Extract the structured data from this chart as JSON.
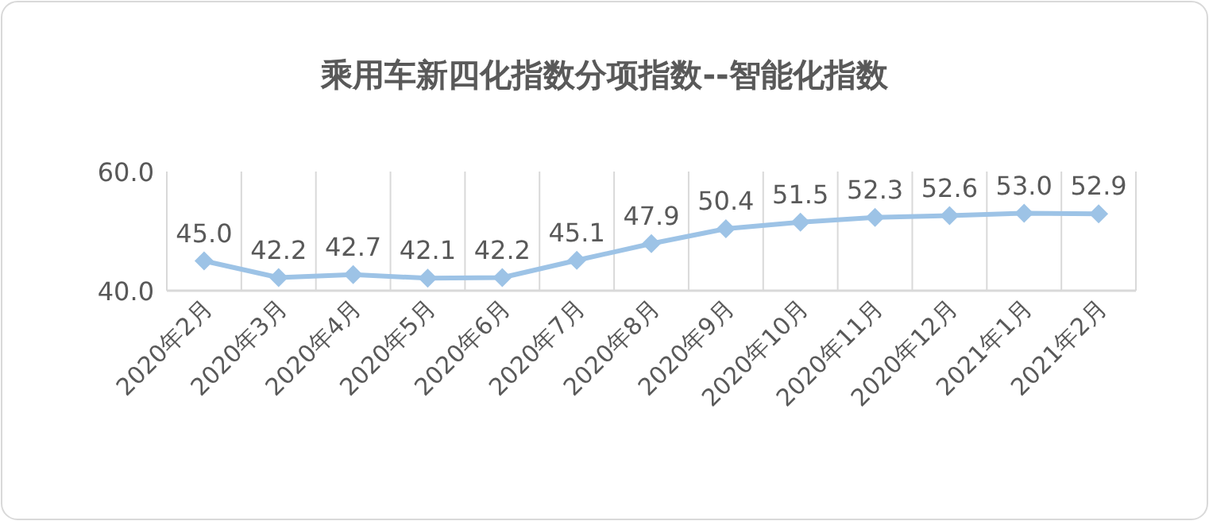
{
  "chart_data": {
    "type": "line",
    "title": "乘用车新四化指数分项指数--智能化指数",
    "categories": [
      "2020年2月",
      "2020年3月",
      "2020年4月",
      "2020年5月",
      "2020年6月",
      "2020年7月",
      "2020年8月",
      "2020年9月",
      "2020年10月",
      "2020年11月",
      "2020年12月",
      "2021年1月",
      "2021年2月"
    ],
    "values": [
      45.0,
      42.2,
      42.7,
      42.1,
      42.2,
      45.1,
      47.9,
      50.4,
      51.5,
      52.3,
      52.6,
      53.0,
      52.9
    ],
    "value_labels": [
      "45.0",
      "42.2",
      "42.7",
      "42.1",
      "42.2",
      "45.1",
      "47.9",
      "50.4",
      "51.5",
      "52.3",
      "52.6",
      "53.0",
      "52.9"
    ],
    "color": "#9dc3e6",
    "marker": "diamond",
    "grid": "x",
    "ylim": [
      40,
      60
    ],
    "yticks": [
      {
        "value": 40,
        "label": "40.0"
      },
      {
        "value": 60,
        "label": "60.0"
      }
    ]
  }
}
